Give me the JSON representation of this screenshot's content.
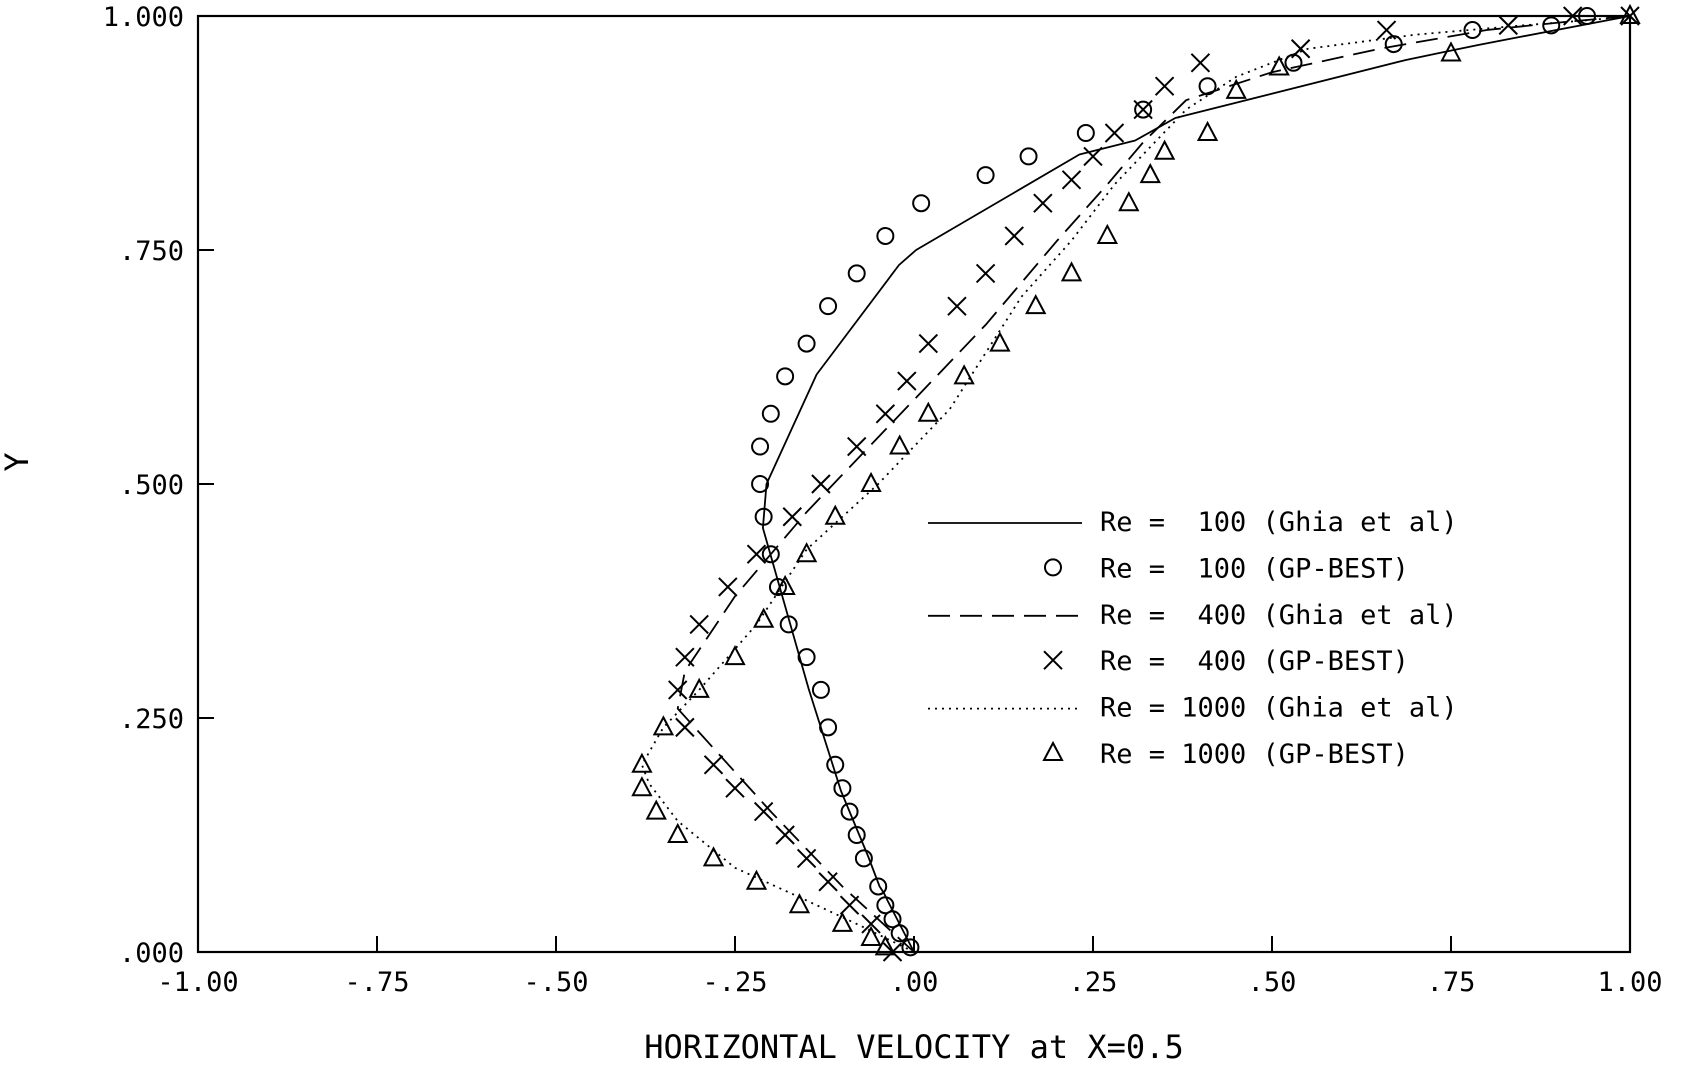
{
  "chart_data": {
    "type": "line",
    "xlabel": "HORIZONTAL VELOCITY at X=0.5",
    "ylabel": "Y",
    "xlim": [
      -1.0,
      1.0
    ],
    "ylim": [
      0.0,
      1.0
    ],
    "x_ticks": [
      -1.0,
      -0.75,
      -0.5,
      -0.25,
      0.0,
      0.25,
      0.5,
      0.75,
      1.0
    ],
    "x_tick_labels": [
      "-1.00",
      "-.75",
      "-.50",
      "-.25",
      ".00",
      ".25",
      ".50",
      ".75",
      "1.00"
    ],
    "y_ticks": [
      0.0,
      0.25,
      0.5,
      0.75,
      1.0
    ],
    "y_tick_labels": [
      ".000",
      ".250",
      ".500",
      ".750",
      "1.000"
    ],
    "grid": false,
    "legend_position": "center-right",
    "series": [
      {
        "name": "Re =  100 (Ghia et al)",
        "style": "solid",
        "marker": "none",
        "x": [
          0.0,
          -0.037,
          -0.042,
          -0.048,
          -0.064,
          -0.102,
          -0.147,
          -0.211,
          -0.206,
          -0.136,
          -0.021,
          0.003,
          0.231,
          0.309,
          0.365,
          0.687,
          0.737,
          0.788,
          0.842,
          1.0
        ],
        "y": [
          0.0,
          0.055,
          0.063,
          0.07,
          0.102,
          0.172,
          0.281,
          0.453,
          0.5,
          0.617,
          0.734,
          0.75,
          0.852,
          0.867,
          0.891,
          0.953,
          0.961,
          0.969,
          0.977,
          1.0
        ]
      },
      {
        "name": "Re =  100 (GP-BEST)",
        "style": "none",
        "marker": "circle",
        "x": [
          -0.005,
          -0.02,
          -0.03,
          -0.04,
          -0.05,
          -0.07,
          -0.08,
          -0.09,
          -0.1,
          -0.11,
          -0.12,
          -0.13,
          -0.15,
          -0.175,
          -0.19,
          -0.2,
          -0.21,
          -0.215,
          -0.215,
          -0.2,
          -0.18,
          -0.15,
          -0.12,
          -0.08,
          -0.04,
          0.01,
          0.1,
          0.16,
          0.24,
          0.32,
          0.41,
          0.53,
          0.67,
          0.78,
          0.89,
          0.94
        ],
        "y": [
          0.005,
          0.02,
          0.035,
          0.05,
          0.07,
          0.1,
          0.125,
          0.15,
          0.175,
          0.2,
          0.24,
          0.28,
          0.315,
          0.35,
          0.39,
          0.425,
          0.465,
          0.5,
          0.54,
          0.575,
          0.615,
          0.65,
          0.69,
          0.725,
          0.765,
          0.8,
          0.83,
          0.85,
          0.875,
          0.9,
          0.925,
          0.95,
          0.97,
          0.985,
          0.99,
          1.0
        ]
      },
      {
        "name": "Re =  400 (Ghia et al)",
        "style": "dashed",
        "marker": "none",
        "x": [
          0.0,
          -0.1,
          -0.2,
          -0.33,
          -0.32,
          -0.25,
          -0.15,
          0.0,
          0.1,
          0.2,
          0.27,
          0.32,
          0.38,
          0.5,
          0.65,
          0.8,
          0.9,
          1.0
        ],
        "y": [
          0.0,
          0.07,
          0.15,
          0.26,
          0.3,
          0.38,
          0.47,
          0.59,
          0.67,
          0.76,
          0.82,
          0.865,
          0.91,
          0.94,
          0.965,
          0.985,
          0.993,
          1.0
        ]
      },
      {
        "name": "Re =  400 (GP-BEST)",
        "style": "none",
        "marker": "x",
        "x": [
          -0.03,
          -0.06,
          -0.09,
          -0.12,
          -0.15,
          -0.18,
          -0.21,
          -0.25,
          -0.28,
          -0.32,
          -0.33,
          -0.32,
          -0.3,
          -0.26,
          -0.22,
          -0.17,
          -0.13,
          -0.08,
          -0.04,
          -0.01,
          0.02,
          0.06,
          0.1,
          0.14,
          0.18,
          0.22,
          0.25,
          0.28,
          0.32,
          0.35,
          0.4,
          0.54,
          0.66,
          0.83,
          0.92,
          1.0
        ],
        "y": [
          0.0,
          0.03,
          0.05,
          0.075,
          0.1,
          0.125,
          0.15,
          0.175,
          0.2,
          0.24,
          0.28,
          0.315,
          0.35,
          0.39,
          0.425,
          0.465,
          0.5,
          0.54,
          0.575,
          0.61,
          0.65,
          0.69,
          0.725,
          0.765,
          0.8,
          0.825,
          0.85,
          0.875,
          0.9,
          0.925,
          0.95,
          0.965,
          0.985,
          0.99,
          1.0,
          1.0
        ]
      },
      {
        "name": "Re = 1000 (Ghia et al)",
        "style": "dotted",
        "marker": "none",
        "x": [
          0.0,
          -0.08,
          -0.15,
          -0.25,
          -0.33,
          -0.37,
          -0.38,
          -0.35,
          -0.3,
          -0.22,
          -0.15,
          -0.05,
          0.05,
          0.15,
          0.22,
          0.28,
          0.33,
          0.38,
          0.45,
          0.55,
          0.7,
          0.85,
          0.95,
          1.0
        ],
        "y": [
          0.0,
          0.03,
          0.055,
          0.09,
          0.14,
          0.18,
          0.2,
          0.24,
          0.28,
          0.35,
          0.43,
          0.5,
          0.58,
          0.7,
          0.76,
          0.82,
          0.86,
          0.9,
          0.935,
          0.965,
          0.98,
          0.99,
          0.996,
          1.0
        ]
      },
      {
        "name": "Re = 1000 (GP-BEST)",
        "style": "none",
        "marker": "triangle",
        "x": [
          -0.04,
          -0.06,
          -0.1,
          -0.16,
          -0.22,
          -0.28,
          -0.33,
          -0.36,
          -0.38,
          -0.38,
          -0.35,
          -0.3,
          -0.25,
          -0.21,
          -0.18,
          -0.15,
          -0.11,
          -0.06,
          -0.02,
          0.02,
          0.07,
          0.12,
          0.17,
          0.22,
          0.27,
          0.3,
          0.33,
          0.35,
          0.41,
          0.45,
          0.51,
          0.75,
          1.0
        ],
        "y": [
          0.005,
          0.015,
          0.03,
          0.05,
          0.075,
          0.1,
          0.125,
          0.15,
          0.175,
          0.2,
          0.24,
          0.28,
          0.315,
          0.355,
          0.39,
          0.425,
          0.465,
          0.5,
          0.54,
          0.575,
          0.615,
          0.65,
          0.69,
          0.725,
          0.765,
          0.8,
          0.83,
          0.855,
          0.875,
          0.92,
          0.945,
          0.96,
          1.0
        ]
      }
    ]
  }
}
